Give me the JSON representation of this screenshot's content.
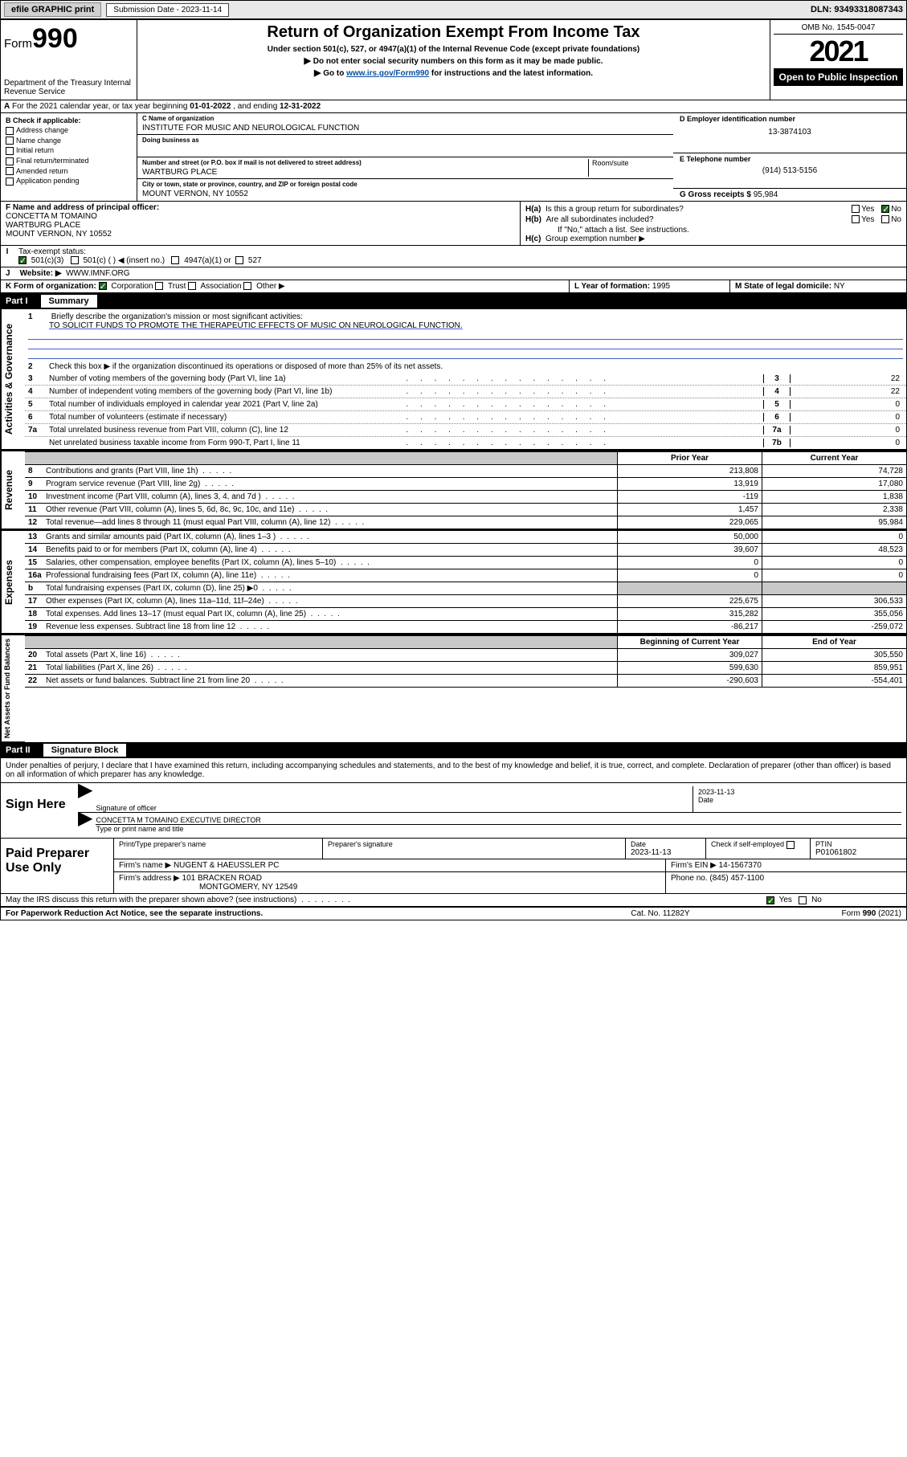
{
  "header_bar": {
    "efile_btn": "efile GRAPHIC print",
    "sub_date_label": "Submission Date - 2023-11-14",
    "dln": "DLN: 93493318087343"
  },
  "top": {
    "form_word": "Form",
    "form_num": "990",
    "dept": "Department of the Treasury\nInternal Revenue Service",
    "title": "Return of Organization Exempt From Income Tax",
    "subtitle": "Under section 501(c), 527, or 4947(a)(1) of the Internal Revenue Code (except private foundations)",
    "instr1": "Do not enter social security numbers on this form as it may be made public.",
    "instr2_prefix": "Go to ",
    "instr2_link": "www.irs.gov/Form990",
    "instr2_suffix": " for instructions and the latest information.",
    "omb": "OMB No. 1545-0047",
    "year": "2021",
    "open": "Open to Public Inspection"
  },
  "lineA": {
    "text_prefix": "For the 2021 calendar year, or tax year beginning ",
    "begin": "01-01-2022",
    "mid": " , and ending ",
    "end": "12-31-2022"
  },
  "colB": {
    "header": "B Check if applicable:",
    "items": [
      "Address change",
      "Name change",
      "Initial return",
      "Final return/terminated",
      "Amended return",
      "Application pending"
    ]
  },
  "colC": {
    "name_label": "C Name of organization",
    "name": "INSTITUTE FOR MUSIC AND NEUROLOGICAL FUNCTION",
    "dba_label": "Doing business as",
    "street_label": "Number and street (or P.O. box if mail is not delivered to street address)",
    "room_label": "Room/suite",
    "street": "WARTBURG PLACE",
    "city_label": "City or town, state or province, country, and ZIP or foreign postal code",
    "city": "MOUNT VERNON, NY  10552"
  },
  "colD": {
    "ein_label": "D Employer identification number",
    "ein": "13-3874103",
    "tel_label": "E Telephone number",
    "tel": "(914) 513-5156",
    "gross_label": "G Gross receipts $ ",
    "gross": "95,984"
  },
  "colF": {
    "label": "F Name and address of principal officer:",
    "l1": "CONCETTA M TOMAINO",
    "l2": "WARTBURG PLACE",
    "l3": "MOUNT VERNON, NY  10552"
  },
  "colH": {
    "ha": "Is this a group return for subordinates?",
    "hb": "Are all subordinates included?",
    "hb_note": "If \"No,\" attach a list. See instructions.",
    "hc": "Group exemption number ▶"
  },
  "rowI": {
    "label": "Tax-exempt status:",
    "opt1": "501(c)(3)",
    "opt2": "501(c) (   ) ◀ (insert no.)",
    "opt3": "4947(a)(1) or",
    "opt4": "527"
  },
  "rowJ": {
    "label": "Website: ▶",
    "val": "WWW.IMNF.ORG"
  },
  "rowK": {
    "label": "K Form of organization:",
    "opts": [
      "Corporation",
      "Trust",
      "Association",
      "Other ▶"
    ]
  },
  "rowL": {
    "label": "L Year of formation: ",
    "val": "1995"
  },
  "rowM": {
    "label": "M State of legal domicile: ",
    "val": "NY"
  },
  "part1": {
    "num": "Part I",
    "title": "Summary"
  },
  "mission": {
    "line1_label": "Briefly describe the organization's mission or most significant activities:",
    "text": "TO SOLICIT FUNDS TO PROMOTE THE THERAPEUTIC EFFECTS OF MUSIC ON NEUROLOGICAL FUNCTION."
  },
  "gov": {
    "l2": "Check this box ▶        if the organization discontinued its operations or disposed of more than 25% of its net assets.",
    "rows": [
      {
        "n": "3",
        "t": "Number of voting members of the governing body (Part VI, line 1a)",
        "box": "3",
        "v": "22"
      },
      {
        "n": "4",
        "t": "Number of independent voting members of the governing body (Part VI, line 1b)",
        "box": "4",
        "v": "22"
      },
      {
        "n": "5",
        "t": "Total number of individuals employed in calendar year 2021 (Part V, line 2a)",
        "box": "5",
        "v": "0"
      },
      {
        "n": "6",
        "t": "Total number of volunteers (estimate if necessary)",
        "box": "6",
        "v": "0"
      },
      {
        "n": "7a",
        "t": "Total unrelated business revenue from Part VIII, column (C), line 12",
        "box": "7a",
        "v": "0"
      },
      {
        "n": "",
        "t": "Net unrelated business taxable income from Form 990-T, Part I, line 11",
        "box": "7b",
        "v": "0"
      }
    ]
  },
  "fin_headers": {
    "prior": "Prior Year",
    "current": "Current Year",
    "boy": "Beginning of Current Year",
    "eoy": "End of Year"
  },
  "revenue": [
    {
      "n": "8",
      "t": "Contributions and grants (Part VIII, line 1h)",
      "p": "213,808",
      "c": "74,728"
    },
    {
      "n": "9",
      "t": "Program service revenue (Part VIII, line 2g)",
      "p": "13,919",
      "c": "17,080"
    },
    {
      "n": "10",
      "t": "Investment income (Part VIII, column (A), lines 3, 4, and 7d )",
      "p": "-119",
      "c": "1,838"
    },
    {
      "n": "11",
      "t": "Other revenue (Part VIII, column (A), lines 5, 6d, 8c, 9c, 10c, and 11e)",
      "p": "1,457",
      "c": "2,338"
    },
    {
      "n": "12",
      "t": "Total revenue—add lines 8 through 11 (must equal Part VIII, column (A), line 12)",
      "p": "229,065",
      "c": "95,984"
    }
  ],
  "expenses": [
    {
      "n": "13",
      "t": "Grants and similar amounts paid (Part IX, column (A), lines 1–3 )",
      "p": "50,000",
      "c": "0"
    },
    {
      "n": "14",
      "t": "Benefits paid to or for members (Part IX, column (A), line 4)",
      "p": "39,607",
      "c": "48,523"
    },
    {
      "n": "15",
      "t": "Salaries, other compensation, employee benefits (Part IX, column (A), lines 5–10)",
      "p": "0",
      "c": "0"
    },
    {
      "n": "16a",
      "t": "Professional fundraising fees (Part IX, column (A), line 11e)",
      "p": "0",
      "c": "0"
    },
    {
      "n": "b",
      "t": "Total fundraising expenses (Part IX, column (D), line 25) ▶0",
      "p": "",
      "c": "",
      "shade": true
    },
    {
      "n": "17",
      "t": "Other expenses (Part IX, column (A), lines 11a–11d, 11f–24e)",
      "p": "225,675",
      "c": "306,533"
    },
    {
      "n": "18",
      "t": "Total expenses. Add lines 13–17 (must equal Part IX, column (A), line 25)",
      "p": "315,282",
      "c": "355,056"
    },
    {
      "n": "19",
      "t": "Revenue less expenses. Subtract line 18 from line 12",
      "p": "-86,217",
      "c": "-259,072"
    }
  ],
  "netassets": [
    {
      "n": "20",
      "t": "Total assets (Part X, line 16)",
      "p": "309,027",
      "c": "305,550"
    },
    {
      "n": "21",
      "t": "Total liabilities (Part X, line 26)",
      "p": "599,630",
      "c": "859,951"
    },
    {
      "n": "22",
      "t": "Net assets or fund balances. Subtract line 21 from line 20",
      "p": "-290,603",
      "c": "-554,401"
    }
  ],
  "vlabels": {
    "gov": "Activities & Governance",
    "rev": "Revenue",
    "exp": "Expenses",
    "net": "Net Assets or Fund Balances"
  },
  "part2": {
    "num": "Part II",
    "title": "Signature Block"
  },
  "sig": {
    "decl": "Under penalties of perjury, I declare that I have examined this return, including accompanying schedules and statements, and to the best of my knowledge and belief, it is true, correct, and complete. Declaration of preparer (other than officer) is based on all information of which preparer has any knowledge.",
    "sign_here": "Sign Here",
    "sig_officer": "Signature of officer",
    "date": "Date",
    "date_val": "2023-11-13",
    "name": "CONCETTA M TOMAINO  EXECUTIVE DIRECTOR",
    "name_label": "Type or print name and title"
  },
  "prep": {
    "title": "Paid Preparer Use Only",
    "h1": "Print/Type preparer's name",
    "h2": "Preparer's signature",
    "h3": "Date",
    "h3v": "2023-11-13",
    "h4": "Check        if self-employed",
    "h5": "PTIN",
    "h5v": "P01061802",
    "firm_label": "Firm's name    ▶",
    "firm": "NUGENT & HAEUSSLER PC",
    "ein_label": "Firm's EIN ▶",
    "ein": "14-1567370",
    "addr_label": "Firm's address ▶",
    "addr1": "101 BRACKEN ROAD",
    "addr2": "MONTGOMERY, NY  12549",
    "phone_label": "Phone no. ",
    "phone": "(845) 457-1100"
  },
  "discuss": {
    "q": "May the IRS discuss this return with the preparer shown above? (see instructions)",
    "yes": "Yes",
    "no": "No"
  },
  "footer": {
    "l": "For Paperwork Reduction Act Notice, see the separate instructions.",
    "m": "Cat. No. 11282Y",
    "r": "Form 990 (2021)"
  },
  "colors": {
    "link": "#0b4fa0",
    "rule_blue": "#4060c0",
    "check_green": "#1a6b1a",
    "shade": "#c8c8c8"
  }
}
